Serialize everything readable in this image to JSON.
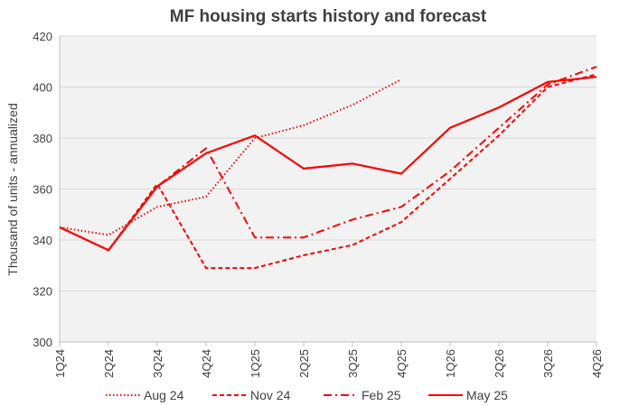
{
  "chart_data": {
    "type": "line",
    "title": "MF housing starts history and forecast",
    "xlabel": "",
    "ylabel": "Thousand of units - annualized",
    "categories": [
      "1Q24",
      "2Q24",
      "3Q24",
      "4Q24",
      "1Q25",
      "2Q25",
      "3Q25",
      "4Q25",
      "1Q26",
      "2Q26",
      "3Q26",
      "4Q26"
    ],
    "ylim": [
      300,
      420
    ],
    "yticks": [
      "300",
      "320",
      "340",
      "360",
      "380",
      "400",
      "420"
    ],
    "grid": true,
    "legend_position": "bottom",
    "series": [
      {
        "name": "Aug 24",
        "style": "dotted",
        "color": "#ff0000",
        "values": [
          345,
          342,
          353,
          357,
          380,
          385,
          393,
          403,
          null,
          null,
          null,
          null
        ]
      },
      {
        "name": "Nov 24",
        "style": "dashed",
        "color": "#ff0000",
        "values": [
          345,
          336,
          362,
          329,
          329,
          334,
          338,
          347,
          364,
          381,
          400,
          405
        ]
      },
      {
        "name": "Feb 25",
        "style": "dashdot",
        "color": "#ff0000",
        "values": [
          345,
          336,
          361,
          376,
          341,
          341,
          348,
          353,
          367,
          384,
          401,
          408
        ]
      },
      {
        "name": "May 25",
        "style": "solid",
        "color": "#ff0000",
        "values": [
          345,
          336,
          361,
          374,
          381,
          368,
          370,
          366,
          384,
          392,
          402,
          404
        ]
      }
    ]
  }
}
